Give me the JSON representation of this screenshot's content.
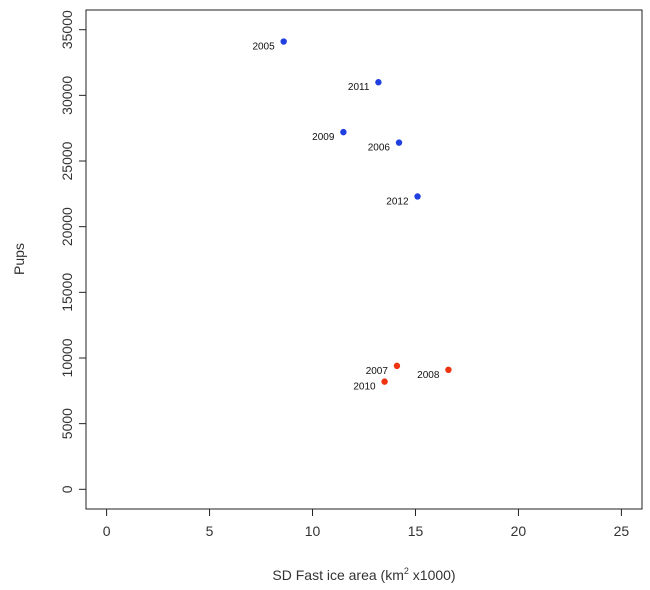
{
  "chart_data": {
    "type": "scatter",
    "title": "",
    "xlabel_pre": "SD Fast ice area (km",
    "xlabel_sup": "2",
    "xlabel_post": " x1000)",
    "ylabel": "Pups",
    "xlim": [
      -1,
      26
    ],
    "ylim": [
      -1500,
      36500
    ],
    "x_ticks": [
      0,
      5,
      10,
      15,
      20,
      25
    ],
    "y_ticks": [
      0,
      5000,
      10000,
      15000,
      20000,
      25000,
      30000,
      35000
    ],
    "x_tick_labels": [
      "0",
      "5",
      "10",
      "15",
      "20",
      "25"
    ],
    "y_tick_labels": [
      "0",
      "5000",
      "10000",
      "15000",
      "20000",
      "25000",
      "30000",
      "35000"
    ],
    "grid": false,
    "colors": {
      "blue": "#1f3fe0",
      "red": "#ee3311"
    },
    "points": [
      {
        "label": "2005",
        "x": 8.6,
        "y": 34100,
        "color": "blue"
      },
      {
        "label": "2011",
        "x": 13.2,
        "y": 31000,
        "color": "blue"
      },
      {
        "label": "2009",
        "x": 11.5,
        "y": 27200,
        "color": "blue"
      },
      {
        "label": "2006",
        "x": 14.2,
        "y": 26400,
        "color": "blue"
      },
      {
        "label": "2012",
        "x": 15.1,
        "y": 22300,
        "color": "blue"
      },
      {
        "label": "2007",
        "x": 14.1,
        "y": 9400,
        "color": "red"
      },
      {
        "label": "2008",
        "x": 16.6,
        "y": 9100,
        "color": "red"
      },
      {
        "label": "2010",
        "x": 13.5,
        "y": 8200,
        "color": "red"
      }
    ]
  }
}
